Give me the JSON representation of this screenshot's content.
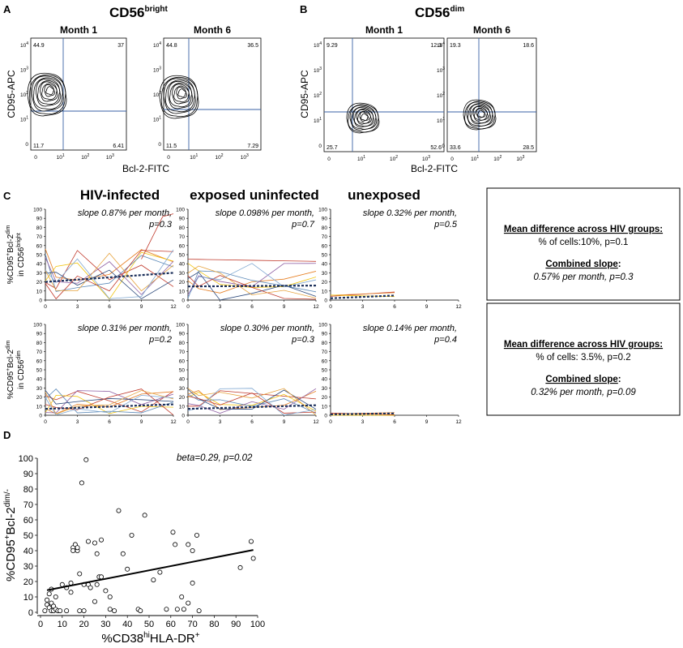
{
  "panel_labels": {
    "a": "A",
    "b": "B",
    "c": "C",
    "d": "D"
  },
  "panelA": {
    "title": "CD56",
    "title_sup": "bright",
    "plots": [
      {
        "label": "Month 1",
        "q": [
          "44.9",
          "37",
          "11.7",
          "6.41"
        ]
      },
      {
        "label": "Month 6",
        "q": [
          "44.8",
          "36.5",
          "11.5",
          "7.29"
        ]
      }
    ],
    "ylabel": "CD95-APC",
    "xlabel": "Bcl-2-FITC"
  },
  "panelB": {
    "title": "CD56",
    "title_sup": "dim",
    "plots": [
      {
        "label": "Month 1",
        "q": [
          "9.29",
          "12.3",
          "25.7",
          "52.6"
        ]
      },
      {
        "label": "Month 6",
        "q": [
          "19.3",
          "18.6",
          "33.6",
          "28.5"
        ]
      }
    ],
    "ylabel": "CD95-APC",
    "xlabel": "Bcl-2-FITC"
  },
  "flow_ticks": {
    "x": [
      "0",
      "10",
      "10",
      "10"
    ],
    "x_exp": [
      "",
      "1",
      "2",
      "3"
    ],
    "y": [
      "0",
      "10",
      "10",
      "10",
      "10"
    ],
    "y_exp": [
      "",
      "1",
      "2",
      "3",
      "4"
    ]
  },
  "panelC": {
    "col_titles": [
      "HIV-infected",
      "exposed uninfected",
      "unexposed"
    ],
    "row1_ylabel": [
      "%CD95",
      "+",
      "Bcl-2",
      "dim"
    ],
    "row1_ylabel2": [
      "in CD56",
      "bright"
    ],
    "row2_ylabel": [
      "%CD95",
      "+",
      "Bcl-2",
      "dim"
    ],
    "row2_ylabel2": [
      "in CD56",
      "dim"
    ],
    "slopes_row1": [
      {
        "line1": "slope 0.87% per month,",
        "line2": "p=0.3"
      },
      {
        "line1": "slope 0.098% per month,",
        "line2": "p=0.7"
      },
      {
        "line1": "slope 0.32% per month,",
        "line2": "p=0.5"
      }
    ],
    "slopes_row2": [
      {
        "line1": "slope 0.31% per month,",
        "line2": "p=0.2"
      },
      {
        "line1": "slope 0.30% per month,",
        "line2": "p=0.3"
      },
      {
        "line1": "slope 0.14% per month,",
        "line2": "p=0.4"
      }
    ],
    "y_ticks": [
      "0",
      "10",
      "20",
      "30",
      "40",
      "50",
      "60",
      "70",
      "80",
      "90",
      "100"
    ],
    "x_ticks": [
      "0",
      "3",
      "6",
      "9",
      "12"
    ],
    "box1": {
      "heading": "Mean difference across HIV groups:",
      "line1": "% of cells:10%, p=0.1",
      "heading2": "Combined slope",
      "colon": ":",
      "line2": "0.57% per month, p=0.3"
    },
    "box2": {
      "heading": "Mean difference across HIV groups:",
      "line1": "% of cells: 3.5%, p=0.2",
      "heading2": "Combined slope",
      "colon": ":",
      "line2": "0.32% per month, p=0.09"
    }
  },
  "chart_data": {
    "type": "scatter",
    "title": "",
    "annotation": "beta=0.29, p=0.02",
    "xlabel": "%CD38hiHLA-DR+",
    "ylabel": "%CD95+Bcl-2dim/-",
    "xlim": [
      0,
      100
    ],
    "ylim": [
      0,
      100
    ],
    "x_ticks": [
      "0",
      "10",
      "20",
      "30",
      "40",
      "50",
      "60",
      "70",
      "80",
      "90",
      "100"
    ],
    "y_ticks": [
      "0",
      "10",
      "20",
      "30",
      "40",
      "50",
      "60",
      "70",
      "80",
      "90",
      "100"
    ],
    "points": [
      [
        2,
        1
      ],
      [
        3,
        5
      ],
      [
        3,
        8
      ],
      [
        4,
        12
      ],
      [
        4,
        3
      ],
      [
        5,
        1
      ],
      [
        5,
        6
      ],
      [
        5,
        15
      ],
      [
        6,
        4
      ],
      [
        6,
        1
      ],
      [
        7,
        2
      ],
      [
        7,
        10
      ],
      [
        8,
        1
      ],
      [
        9,
        1
      ],
      [
        10,
        18
      ],
      [
        12,
        16
      ],
      [
        12,
        1
      ],
      [
        14,
        19
      ],
      [
        14,
        13
      ],
      [
        15,
        42
      ],
      [
        15,
        40
      ],
      [
        16,
        44
      ],
      [
        17,
        40
      ],
      [
        17,
        42
      ],
      [
        18,
        25
      ],
      [
        18,
        1
      ],
      [
        19,
        84
      ],
      [
        20,
        18
      ],
      [
        20,
        1
      ],
      [
        21,
        99
      ],
      [
        22,
        46
      ],
      [
        22,
        18
      ],
      [
        23,
        16
      ],
      [
        25,
        45
      ],
      [
        25,
        7
      ],
      [
        26,
        38
      ],
      [
        26,
        18
      ],
      [
        27,
        23
      ],
      [
        28,
        23
      ],
      [
        28,
        47
      ],
      [
        30,
        14
      ],
      [
        32,
        10
      ],
      [
        32,
        2
      ],
      [
        34,
        1
      ],
      [
        36,
        66
      ],
      [
        38,
        38
      ],
      [
        40,
        28
      ],
      [
        42,
        50
      ],
      [
        45,
        2
      ],
      [
        46,
        1
      ],
      [
        48,
        63
      ],
      [
        52,
        21
      ],
      [
        55,
        26
      ],
      [
        58,
        2
      ],
      [
        61,
        52
      ],
      [
        62,
        44
      ],
      [
        63,
        2
      ],
      [
        65,
        10
      ],
      [
        66,
        2
      ],
      [
        68,
        6
      ],
      [
        68,
        44
      ],
      [
        70,
        40
      ],
      [
        70,
        19
      ],
      [
        72,
        50
      ],
      [
        73,
        1
      ],
      [
        92,
        29
      ],
      [
        97,
        46
      ],
      [
        98,
        35
      ]
    ],
    "fit_line": {
      "intercept": 13.5,
      "slope": 0.275
    }
  }
}
